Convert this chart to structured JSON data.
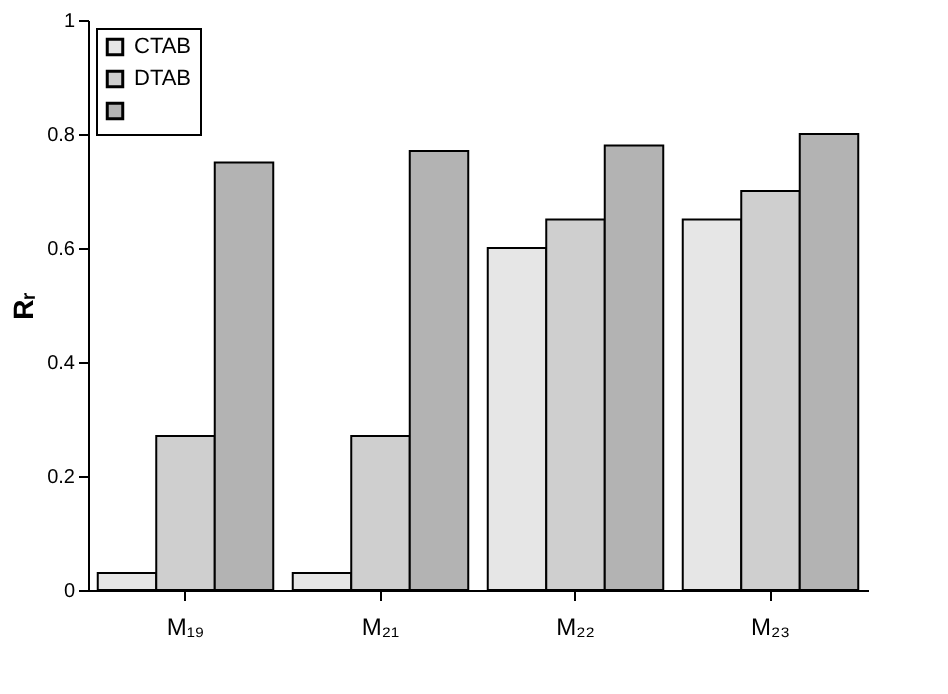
{
  "chart_data": {
    "type": "bar",
    "ylabel": "Rᵣ",
    "categories": [
      "M₁₉",
      "M₂₁",
      "M₂₂",
      "M₂₃"
    ],
    "series": [
      {
        "name": "CTAB",
        "color": "#e6e6e6",
        "values": [
          0.03,
          0.03,
          0.6,
          0.65
        ]
      },
      {
        "name": "DTAB",
        "color": "#cfcfcf",
        "values": [
          0.27,
          0.27,
          0.65,
          0.7
        ]
      },
      {
        "color": "#b3b3b3",
        "values": [
          0.75,
          0.77,
          0.78,
          0.8
        ]
      }
    ],
    "ylim": [
      0,
      1
    ],
    "yticks": [
      0,
      0.2,
      0.4,
      0.6,
      0.8,
      1
    ],
    "grid": false,
    "legend": "top left"
  }
}
